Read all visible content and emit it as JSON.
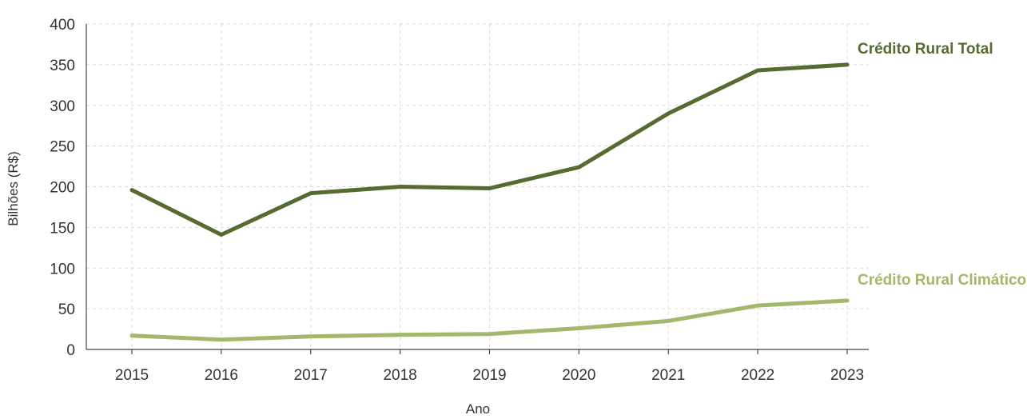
{
  "chart_data": {
    "type": "line",
    "xlabel": "Ano",
    "ylabel": "Bilhões (R$)",
    "x": [
      "2015",
      "2016",
      "2017",
      "2018",
      "2019",
      "2020",
      "2021",
      "2022",
      "2023"
    ],
    "ylim": [
      0,
      400
    ],
    "yticks": [
      0,
      50,
      100,
      150,
      200,
      250,
      300,
      350,
      400
    ],
    "grid": true,
    "series": [
      {
        "name": "Crédito Rural Total",
        "color": "#556b2f",
        "values": [
          196,
          141,
          192,
          200,
          198,
          224,
          290,
          343,
          350
        ]
      },
      {
        "name": "Crédito Rural Climático",
        "color": "#a3b86c",
        "values": [
          17,
          12,
          16,
          18,
          19,
          26,
          35,
          54,
          60
        ]
      }
    ]
  }
}
